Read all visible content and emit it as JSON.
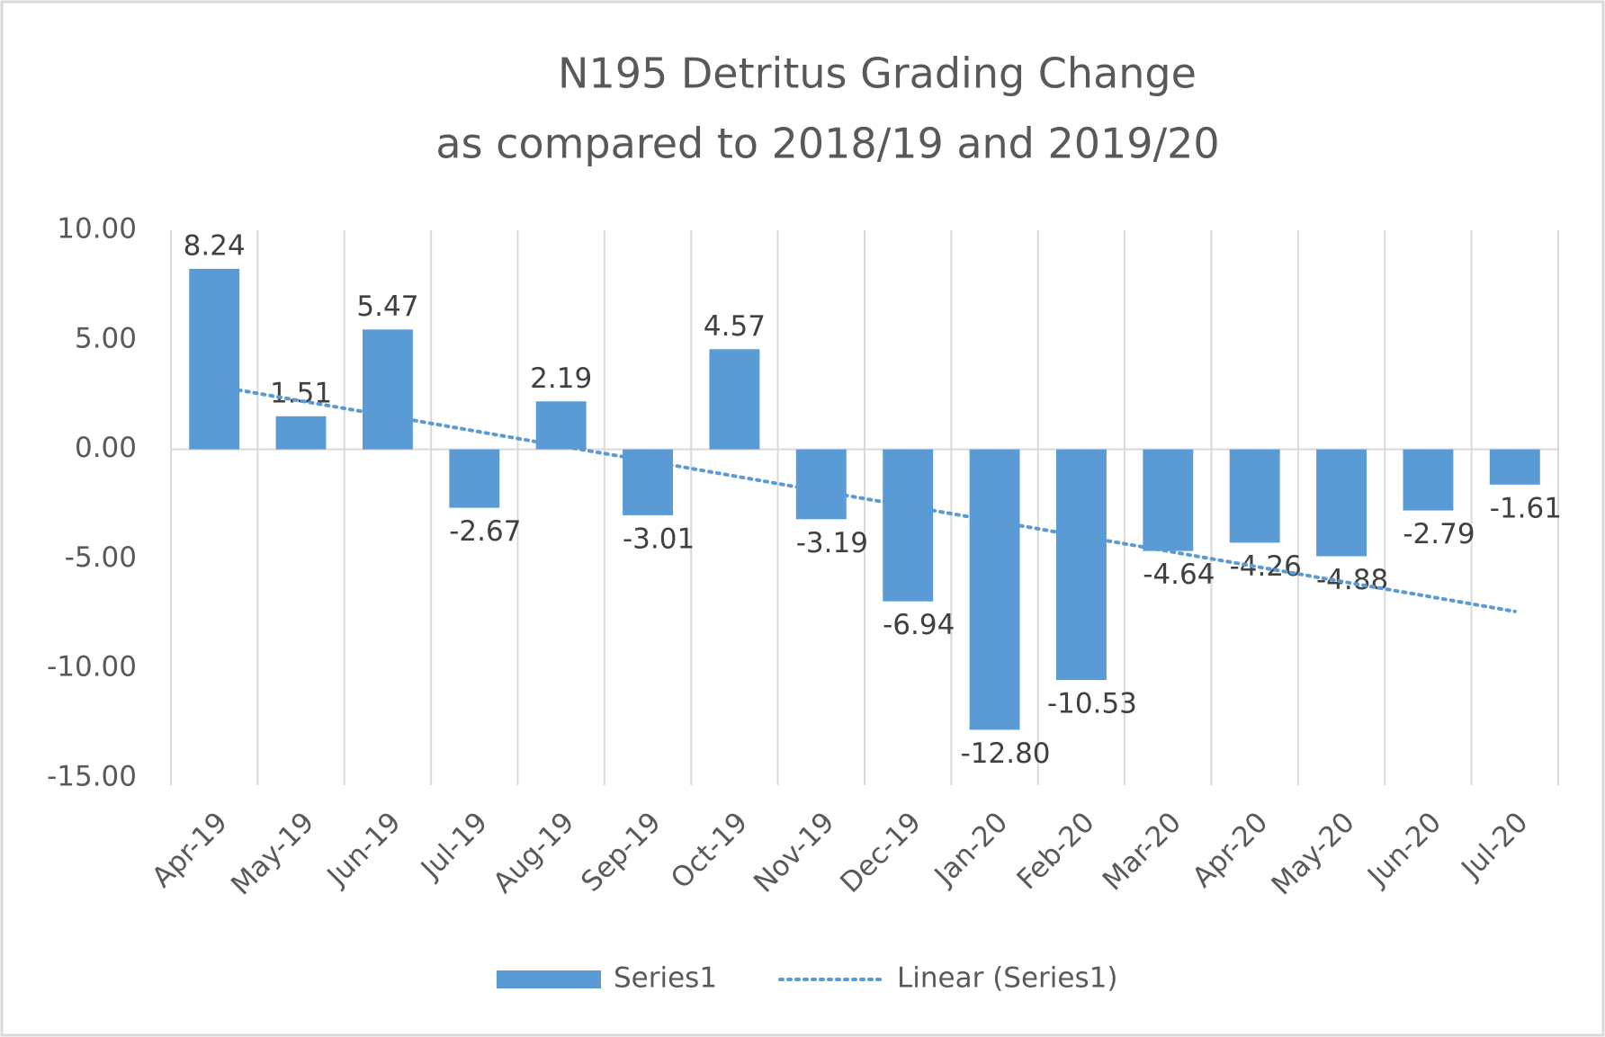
{
  "chart_data": {
    "type": "bar",
    "title": [
      "N195 Detritus Grading Change",
      "as compared to 2018/19 and 2019/20"
    ],
    "categories": [
      "Apr-19",
      "May-19",
      "Jun-19",
      "Jul-19",
      "Aug-19",
      "Sep-19",
      "Oct-19",
      "Nov-19",
      "Dec-19",
      "Jan-20",
      "Feb-20",
      "Mar-20",
      "Apr-20",
      "May-20",
      "Jun-20",
      "Jul-20"
    ],
    "series": [
      {
        "name": "Series1",
        "type": "bar",
        "color": "#5b9bd5",
        "values": [
          8.24,
          1.51,
          5.47,
          -2.67,
          2.19,
          -3.01,
          4.57,
          -3.19,
          -6.94,
          -12.8,
          -10.53,
          -4.64,
          -4.26,
          -4.88,
          -2.79,
          -1.61
        ],
        "value_labels": [
          "8.24",
          "1.51",
          "5.47",
          "-2.67",
          "2.19",
          "-3.01",
          "4.57",
          "-3.19",
          "-6.94",
          "-12.80",
          "-10.53",
          "-4.64",
          "-4.26",
          "-4.88",
          "-2.79",
          "-1.61"
        ]
      },
      {
        "name": "Linear (Series1)",
        "type": "line",
        "style": "dotted",
        "color": "#5b9bd5",
        "values": [
          2.9,
          2.21,
          1.53,
          0.84,
          0.15,
          -0.53,
          -1.22,
          -1.91,
          -2.59,
          -3.28,
          -3.97,
          -4.65,
          -5.34,
          -6.03,
          -6.71,
          -7.4
        ]
      }
    ],
    "ylim": [
      -15,
      10
    ],
    "yticks": [
      {
        "value": -15,
        "label": "-15.00"
      },
      {
        "value": -10,
        "label": "-10.00"
      },
      {
        "value": -5,
        "label": "-5.00"
      },
      {
        "value": 0,
        "label": "0.00"
      },
      {
        "value": 5,
        "label": "5.00"
      },
      {
        "value": 10,
        "label": "10.00"
      }
    ],
    "grid": false,
    "legend": "bottom"
  }
}
